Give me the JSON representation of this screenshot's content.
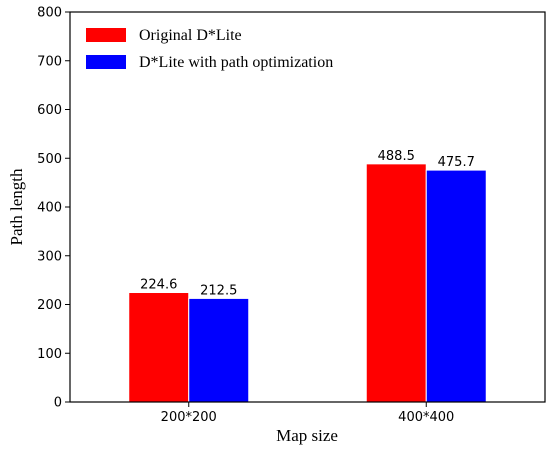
{
  "chart_data": {
    "type": "bar",
    "categories": [
      "200*200",
      "400*400"
    ],
    "series": [
      {
        "name": "Original D*Lite",
        "values": [
          224.6,
          488.5
        ],
        "color": "#ff0000"
      },
      {
        "name": "D*Lite with path optimization",
        "values": [
          212.5,
          475.7
        ],
        "color": "#0000ff"
      }
    ],
    "data_labels": [
      [
        "224.6",
        "488.5"
      ],
      [
        "212.5",
        "475.7"
      ]
    ],
    "xlabel": "Map size",
    "ylabel": "Path length",
    "ylim": [
      0,
      800
    ],
    "yticks": [
      0,
      100,
      200,
      300,
      400,
      500,
      600,
      700,
      800
    ],
    "grid": false,
    "legend_position": "top-left"
  }
}
